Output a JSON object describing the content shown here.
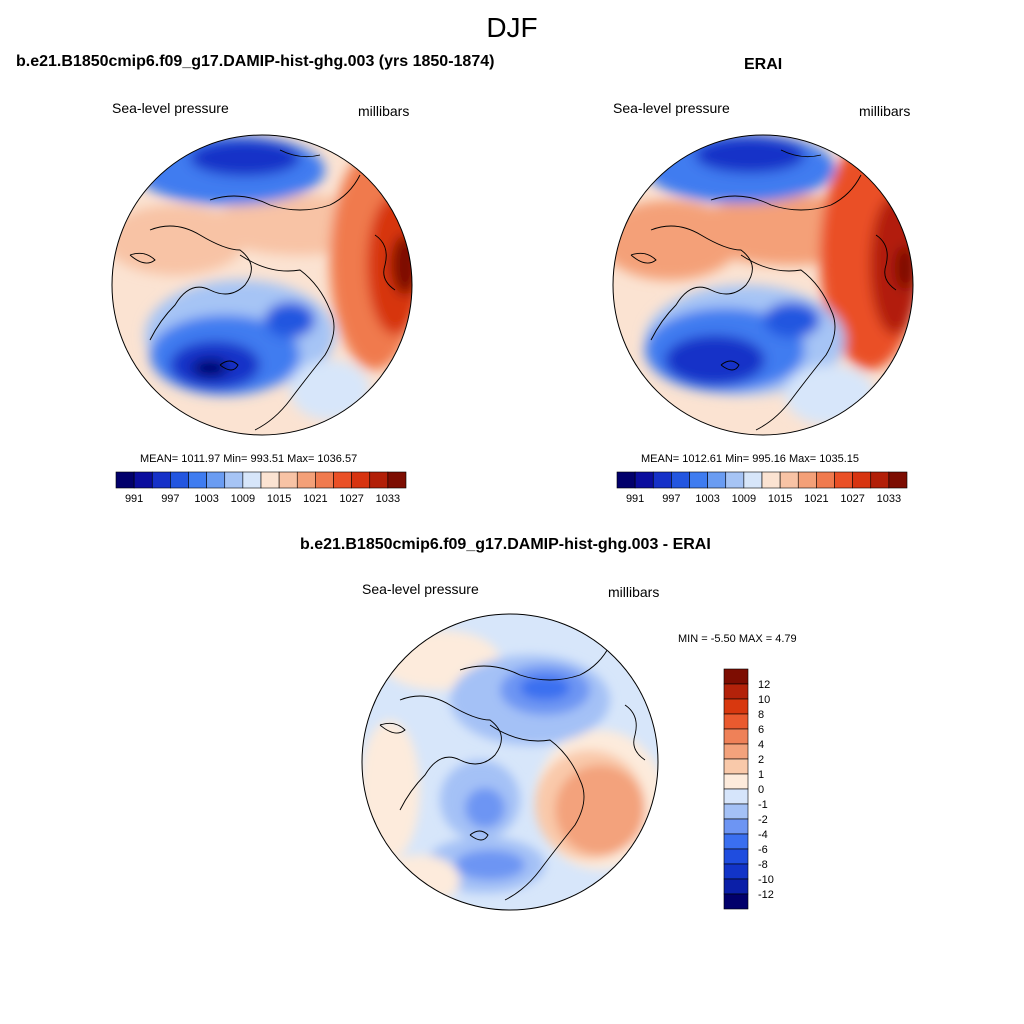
{
  "season": "DJF",
  "panels": [
    {
      "title": "b.e21.B1850cmip6.f09_g17.DAMIP-hist-ghg.003 (yrs 1850-1874)",
      "variable": "Sea-level pressure",
      "units": "millibars",
      "stats": "MEAN= 1011.97  Min= 993.51  Max= 1036.57"
    },
    {
      "title": "ERAI",
      "variable": "Sea-level pressure",
      "units": "millibars",
      "stats": "MEAN= 1012.61  Min= 995.16  Max= 1035.15"
    },
    {
      "title": "b.e21.B1850cmip6.f09_g17.DAMIP-hist-ghg.003 - ERAI",
      "variable": "Sea-level pressure",
      "units": "millibars",
      "stats": "MIN =  -5.50 MAX =   4.79"
    }
  ],
  "colorbar_abs": {
    "colors": [
      "#02006b",
      "#0b0d9e",
      "#1631c8",
      "#2356e0",
      "#3f7cf0",
      "#6a9cf2",
      "#a6c4f5",
      "#d7e6fa",
      "#fbe3d2",
      "#f8c3a5",
      "#f4a078",
      "#f07a4e",
      "#ea5026",
      "#d73410",
      "#b21f08",
      "#7d0d02"
    ],
    "tick_labels": [
      "991",
      "997",
      "1003",
      "1009",
      "1015",
      "1021",
      "1027",
      "1033"
    ]
  },
  "colorbar_diff": {
    "colors": [
      "#02006b",
      "#0b1fa8",
      "#1234c8",
      "#1f4ddf",
      "#3a6ff0",
      "#6d95f3",
      "#a4c1f6",
      "#d6e5fb",
      "#fdebdc",
      "#f9c9aa",
      "#f3a27c",
      "#ef8158",
      "#ea5a2f",
      "#d8380f",
      "#b3220a",
      "#7d0d02"
    ],
    "tick_labels": [
      "12",
      "10",
      "8",
      "6",
      "4",
      "2",
      "1",
      "0",
      "-1",
      "-2",
      "-4",
      "-6",
      "-8",
      "-10",
      "-12"
    ]
  }
}
